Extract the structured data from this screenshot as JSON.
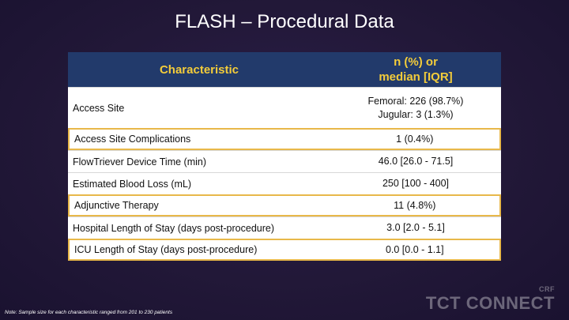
{
  "title": "FLASH – Procedural Data",
  "table": {
    "header": {
      "characteristic": "Characteristic",
      "value_line1": "n (%) or",
      "value_line2": "median [IQR]"
    },
    "rows": [
      {
        "label": "Access Site",
        "value_line1": "Femoral: 226 (98.7%)",
        "value_line2": "Jugular: 3 (1.3%)",
        "highlighted": false
      },
      {
        "label": "Access Site Complications",
        "value": "1 (0.4%)",
        "highlighted": true
      },
      {
        "label": "FlowTriever Device Time (min)",
        "value": "46.0 [26.0 - 71.5]",
        "highlighted": false
      },
      {
        "label": "Estimated Blood Loss (mL)",
        "value": "250 [100 - 400]",
        "highlighted": false
      },
      {
        "label": "Adjunctive Therapy",
        "value": "11 (4.8%)",
        "highlighted": true
      },
      {
        "label": "Hospital Length of Stay (days post-procedure)",
        "value": "3.0 [2.0 - 5.1]",
        "highlighted": false
      },
      {
        "label": "ICU Length of Stay (days post-procedure)",
        "value": "0.0 [0.0 - 1.1]",
        "highlighted": true
      }
    ]
  },
  "footnote": "Note: Sample size for each characteristic ranged from 201 to 230 patients",
  "logo": {
    "crf": "CRF",
    "tct": "TCT CONNECT"
  },
  "colors": {
    "background": "#221838",
    "header_bg": "#223a6b",
    "header_text": "#f3cc3a",
    "highlight_border": "#e8b84a"
  }
}
